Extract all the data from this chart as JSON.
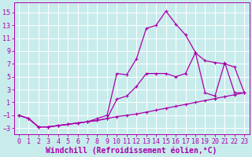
{
  "background_color": "#c8ecec",
  "line_color": "#aa00aa",
  "grid_color": "#aacccc",
  "xlabel": "Windchill (Refroidissement éolien,°C)",
  "xlabel_fontsize": 7.0,
  "tick_fontsize": 6.0,
  "xlim": [
    -0.5,
    23.5
  ],
  "ylim": [
    -4.0,
    16.5
  ],
  "yticks": [
    -3,
    -1,
    1,
    3,
    5,
    7,
    9,
    11,
    13,
    15
  ],
  "xticks": [
    0,
    1,
    2,
    3,
    4,
    5,
    6,
    7,
    8,
    9,
    10,
    11,
    12,
    13,
    14,
    15,
    16,
    17,
    18,
    19,
    20,
    21,
    22,
    23
  ],
  "line1_x": [
    0,
    1,
    2,
    3,
    4,
    5,
    6,
    7,
    8,
    9,
    10,
    11,
    12,
    13,
    14,
    15,
    16,
    17,
    18,
    19,
    20,
    21,
    22,
    23
  ],
  "line1_y": [
    -1.0,
    -1.5,
    -2.8,
    -2.8,
    -2.6,
    -2.4,
    -2.2,
    -2.0,
    -1.8,
    -1.5,
    -1.2,
    -1.0,
    -0.8,
    -0.5,
    -0.2,
    0.1,
    0.4,
    0.7,
    1.0,
    1.3,
    1.6,
    1.9,
    2.2,
    2.5
  ],
  "line2_x": [
    0,
    1,
    2,
    3,
    4,
    5,
    6,
    7,
    8,
    9,
    10,
    11,
    12,
    13,
    14,
    15,
    16,
    17,
    18,
    19,
    20,
    21,
    22,
    23
  ],
  "line2_y": [
    -1.0,
    -1.5,
    -2.8,
    -2.8,
    -2.6,
    -2.4,
    -2.2,
    -2.0,
    -1.8,
    -1.5,
    1.5,
    2.0,
    3.5,
    5.5,
    5.5,
    5.5,
    5.0,
    5.5,
    8.7,
    7.5,
    7.2,
    7.0,
    6.5,
    2.5
  ],
  "line3_x": [
    0,
    1,
    2,
    3,
    4,
    5,
    6,
    7,
    8,
    9,
    10,
    11,
    12,
    13,
    14,
    15,
    16,
    17,
    18,
    19,
    20,
    21,
    22,
    23
  ],
  "line3_y": [
    -1.0,
    -1.5,
    -2.8,
    -2.8,
    -2.6,
    -2.4,
    -2.2,
    -2.0,
    -1.5,
    -1.0,
    5.5,
    5.3,
    7.8,
    12.5,
    13.0,
    15.2,
    13.2,
    11.5,
    8.8,
    2.5,
    2.0,
    7.2,
    2.5,
    2.5
  ]
}
